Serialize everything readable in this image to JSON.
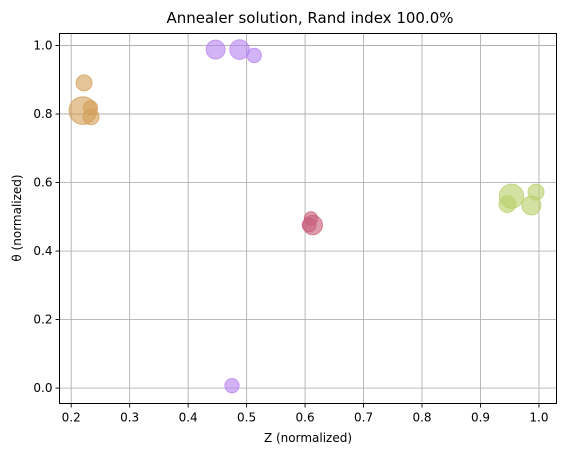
{
  "chart_data": {
    "type": "scatter",
    "title": "Annealer solution, Rand index 100.0%",
    "xlabel": "Z (normalized)",
    "ylabel": "θ (normalized)",
    "xlim": [
      0.18,
      1.03
    ],
    "ylim": [
      -0.045,
      1.035
    ],
    "xticks": [
      "0.2",
      "0.3",
      "0.4",
      "0.5",
      "0.6",
      "0.7",
      "0.8",
      "0.9",
      "1.0"
    ],
    "yticks": [
      "0.0",
      "0.2",
      "0.4",
      "0.6",
      "0.8",
      "1.0"
    ],
    "grid": true,
    "series": [
      {
        "color": "#d4a05a",
        "points": [
          {
            "x": 0.222,
            "y": 0.891,
            "size": 1.0
          },
          {
            "x": 0.22,
            "y": 0.81,
            "size": 3.0
          },
          {
            "x": 0.233,
            "y": 0.818,
            "size": 0.8
          },
          {
            "x": 0.234,
            "y": 0.792,
            "size": 1.0
          }
        ]
      },
      {
        "color": "#b784f0",
        "points": [
          {
            "x": 0.447,
            "y": 0.988,
            "size": 1.4
          },
          {
            "x": 0.488,
            "y": 0.988,
            "size": 1.5
          },
          {
            "x": 0.513,
            "y": 0.971,
            "size": 0.8
          },
          {
            "x": 0.475,
            "y": 0.007,
            "size": 0.8
          }
        ]
      },
      {
        "color": "#c8607a",
        "points": [
          {
            "x": 0.607,
            "y": 0.476,
            "size": 0.75
          },
          {
            "x": 0.61,
            "y": 0.495,
            "size": 0.7
          },
          {
            "x": 0.613,
            "y": 0.476,
            "size": 1.5
          }
        ]
      },
      {
        "color": "#b8cf6a",
        "points": [
          {
            "x": 0.953,
            "y": 0.56,
            "size": 2.3
          },
          {
            "x": 0.946,
            "y": 0.537,
            "size": 1.1
          },
          {
            "x": 0.987,
            "y": 0.533,
            "size": 1.4
          },
          {
            "x": 0.995,
            "y": 0.572,
            "size": 1.0
          }
        ]
      }
    ]
  }
}
